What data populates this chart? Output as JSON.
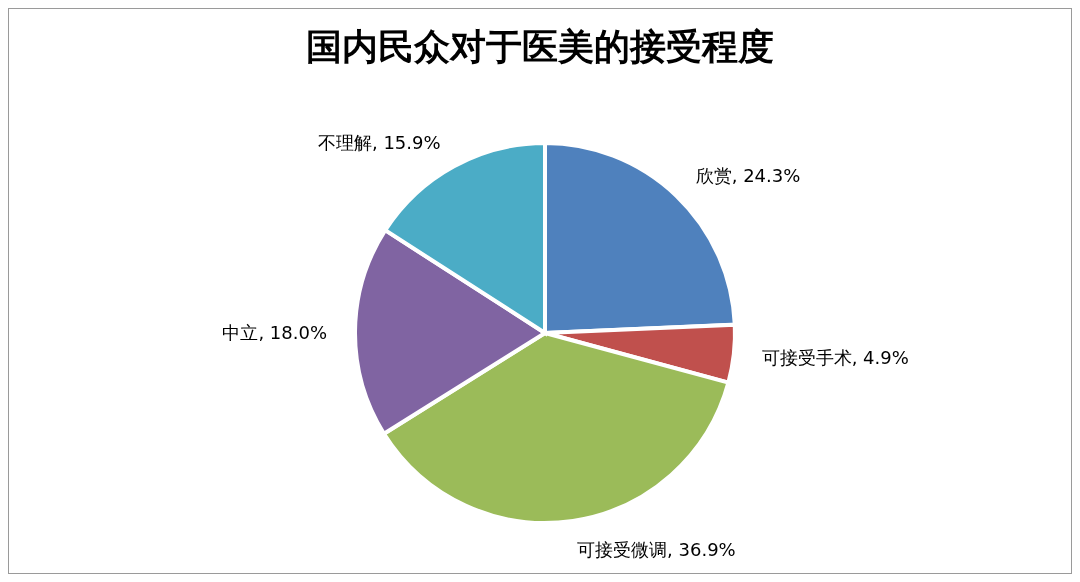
{
  "chart_data": {
    "type": "pie",
    "title": "国内民众对于医美的接受程度",
    "categories": [
      "欣赏",
      "可接受手术",
      "可接受微调",
      "中立",
      "不理解"
    ],
    "values": [
      24.3,
      4.9,
      36.9,
      18.0,
      15.9
    ],
    "colors": [
      "#4f81bd",
      "#c0504d",
      "#9bbb59",
      "#8064a2",
      "#4bacc6"
    ],
    "value_labels": [
      ", 24.3%",
      ", 4.9%",
      ", 36.9%",
      ", 18.0%",
      ", 15.9%"
    ],
    "legend": false
  }
}
